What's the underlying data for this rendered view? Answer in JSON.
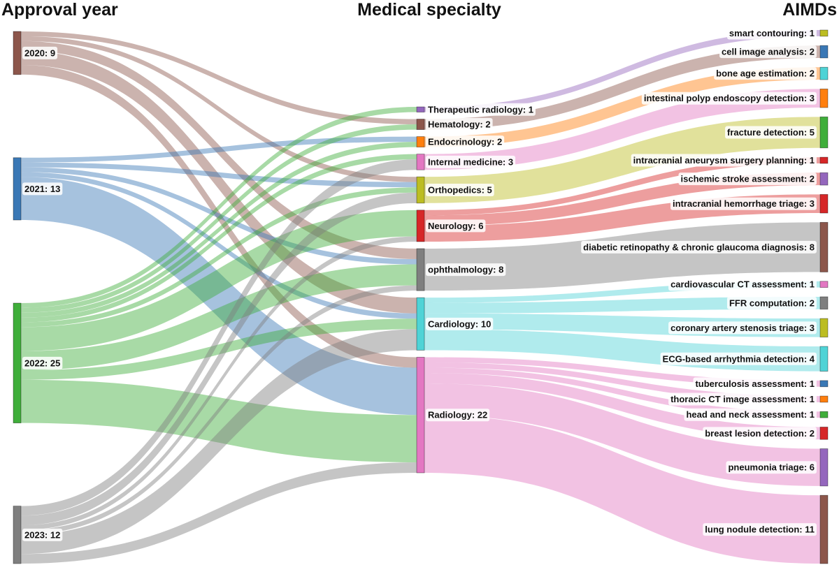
{
  "headers": {
    "year": "Approval year",
    "specialty": "Medical specialty",
    "aimds": "AIMDs"
  },
  "columns": {
    "year": [
      {
        "id": "y2020",
        "label": "2020: 9",
        "value": 9,
        "color": "#8c564b"
      },
      {
        "id": "y2021",
        "label": "2021: 13",
        "value": 13,
        "color": "#3a78b5"
      },
      {
        "id": "y2022",
        "label": "2022: 25",
        "value": 25,
        "color": "#3fae3a"
      },
      {
        "id": "y2023",
        "label": "2023: 12",
        "value": 12,
        "color": "#7f7f7f"
      }
    ],
    "specialty": [
      {
        "id": "ther",
        "label": "Therapeutic radiology: 1",
        "value": 1,
        "color": "#9467bd"
      },
      {
        "id": "hema",
        "label": "Hematology: 2",
        "value": 2,
        "color": "#8c564b"
      },
      {
        "id": "endo",
        "label": "Endocrinology: 2",
        "value": 2,
        "color": "#ff7f0e"
      },
      {
        "id": "intm",
        "label": "Internal medicine: 3",
        "value": 3,
        "color": "#e377c2"
      },
      {
        "id": "orth",
        "label": "Orthopedics: 5",
        "value": 5,
        "color": "#bcbd22"
      },
      {
        "id": "neur",
        "label": "Neurology: 6",
        "value": 6,
        "color": "#d62728"
      },
      {
        "id": "opht",
        "label": "ophthalmology: 8",
        "value": 8,
        "color": "#7f7f7f"
      },
      {
        "id": "card",
        "label": "Cardiology: 10",
        "value": 10,
        "color": "#4fd3d6"
      },
      {
        "id": "radi",
        "label": "Radiology: 22",
        "value": 22,
        "color": "#e377c2"
      }
    ],
    "aimds": [
      {
        "id": "smart",
        "label": "smart contouring: 1",
        "value": 1,
        "color": "#bcbd22"
      },
      {
        "id": "cell",
        "label": "cell image analysis: 2",
        "value": 2,
        "color": "#3a78b5"
      },
      {
        "id": "bone",
        "label": "bone age estimation: 2",
        "value": 2,
        "color": "#4fd3d6"
      },
      {
        "id": "polyp",
        "label": "intestinal polyp endoscopy detection: 3",
        "value": 3,
        "color": "#ff7f0e"
      },
      {
        "id": "frac",
        "label": "fracture detection: 5",
        "value": 5,
        "color": "#3fae3a"
      },
      {
        "id": "aneur",
        "label": "intracranial aneurysm surgery planning: 1",
        "value": 1,
        "color": "#d62728"
      },
      {
        "id": "isch",
        "label": "ischemic stroke assessment: 2",
        "value": 2,
        "color": "#9467bd"
      },
      {
        "id": "hemo",
        "label": "intracranial hemorrhage triage: 3",
        "value": 3,
        "color": "#d62728"
      },
      {
        "id": "diab",
        "label": "diabetic retinopathy & chronic glaucoma diagnosis: 8",
        "value": 8,
        "color": "#8c564b"
      },
      {
        "id": "cvct",
        "label": "cardiovascular CT assessment: 1",
        "value": 1,
        "color": "#e377c2"
      },
      {
        "id": "ffr",
        "label": "FFR computation: 2",
        "value": 2,
        "color": "#7f7f7f"
      },
      {
        "id": "steno",
        "label": "coronary artery stenosis triage: 3",
        "value": 3,
        "color": "#bcbd22"
      },
      {
        "id": "ecg",
        "label": "ECG-based arrhythmia detection: 4",
        "value": 4,
        "color": "#4fd3d6"
      },
      {
        "id": "tb",
        "label": "tuberculosis assessment: 1",
        "value": 1,
        "color": "#3a78b5"
      },
      {
        "id": "thor",
        "label": "thoracic CT image assessment: 1",
        "value": 1,
        "color": "#ff7f0e"
      },
      {
        "id": "head",
        "label": "head and neck assessment: 1",
        "value": 1,
        "color": "#3fae3a"
      },
      {
        "id": "breast",
        "label": "breast lesion detection: 2",
        "value": 2,
        "color": "#d62728"
      },
      {
        "id": "pneu",
        "label": "pneumonia triage: 6",
        "value": 6,
        "color": "#9467bd"
      },
      {
        "id": "lung",
        "label": "lung nodule detection: 11",
        "value": 11,
        "color": "#8c564b"
      }
    ]
  },
  "links_left": [
    {
      "source": "y2020",
      "target": "hema",
      "value": 1
    },
    {
      "source": "y2020",
      "target": "orth",
      "value": 1
    },
    {
      "source": "y2020",
      "target": "opht",
      "value": 2
    },
    {
      "source": "y2020",
      "target": "card",
      "value": 3
    },
    {
      "source": "y2020",
      "target": "radi",
      "value": 2
    },
    {
      "source": "y2021",
      "target": "endo",
      "value": 1
    },
    {
      "source": "y2021",
      "target": "orth",
      "value": 1
    },
    {
      "source": "y2021",
      "target": "opht",
      "value": 1
    },
    {
      "source": "y2021",
      "target": "card",
      "value": 1
    },
    {
      "source": "y2021",
      "target": "radi",
      "value": 9
    },
    {
      "source": "y2022",
      "target": "ther",
      "value": 1
    },
    {
      "source": "y2022",
      "target": "hema",
      "value": 1
    },
    {
      "source": "y2022",
      "target": "endo",
      "value": 1
    },
    {
      "source": "y2022",
      "target": "intm",
      "value": 1
    },
    {
      "source": "y2022",
      "target": "orth",
      "value": 1
    },
    {
      "source": "y2022",
      "target": "neur",
      "value": 5
    },
    {
      "source": "y2022",
      "target": "opht",
      "value": 4
    },
    {
      "source": "y2022",
      "target": "card",
      "value": 2
    },
    {
      "source": "y2022",
      "target": "radi",
      "value": 9
    },
    {
      "source": "y2023",
      "target": "intm",
      "value": 2
    },
    {
      "source": "y2023",
      "target": "orth",
      "value": 2
    },
    {
      "source": "y2023",
      "target": "neur",
      "value": 1
    },
    {
      "source": "y2023",
      "target": "opht",
      "value": 1
    },
    {
      "source": "y2023",
      "target": "card",
      "value": 4
    },
    {
      "source": "y2023",
      "target": "radi",
      "value": 2
    }
  ],
  "links_right": [
    {
      "source": "ther",
      "target": "smart",
      "value": 1
    },
    {
      "source": "hema",
      "target": "cell",
      "value": 2
    },
    {
      "source": "endo",
      "target": "bone",
      "value": 2
    },
    {
      "source": "intm",
      "target": "polyp",
      "value": 3
    },
    {
      "source": "orth",
      "target": "frac",
      "value": 5
    },
    {
      "source": "neur",
      "target": "aneur",
      "value": 1
    },
    {
      "source": "neur",
      "target": "isch",
      "value": 2
    },
    {
      "source": "neur",
      "target": "hemo",
      "value": 3
    },
    {
      "source": "opht",
      "target": "diab",
      "value": 8
    },
    {
      "source": "card",
      "target": "cvct",
      "value": 1
    },
    {
      "source": "card",
      "target": "ffr",
      "value": 2
    },
    {
      "source": "card",
      "target": "steno",
      "value": 3
    },
    {
      "source": "card",
      "target": "ecg",
      "value": 4
    },
    {
      "source": "radi",
      "target": "tb",
      "value": 1
    },
    {
      "source": "radi",
      "target": "thor",
      "value": 1
    },
    {
      "source": "radi",
      "target": "head",
      "value": 1
    },
    {
      "source": "radi",
      "target": "breast",
      "value": 2
    },
    {
      "source": "radi",
      "target": "pneu",
      "value": 6
    },
    {
      "source": "radi",
      "target": "lung",
      "value": 11
    }
  ]
}
